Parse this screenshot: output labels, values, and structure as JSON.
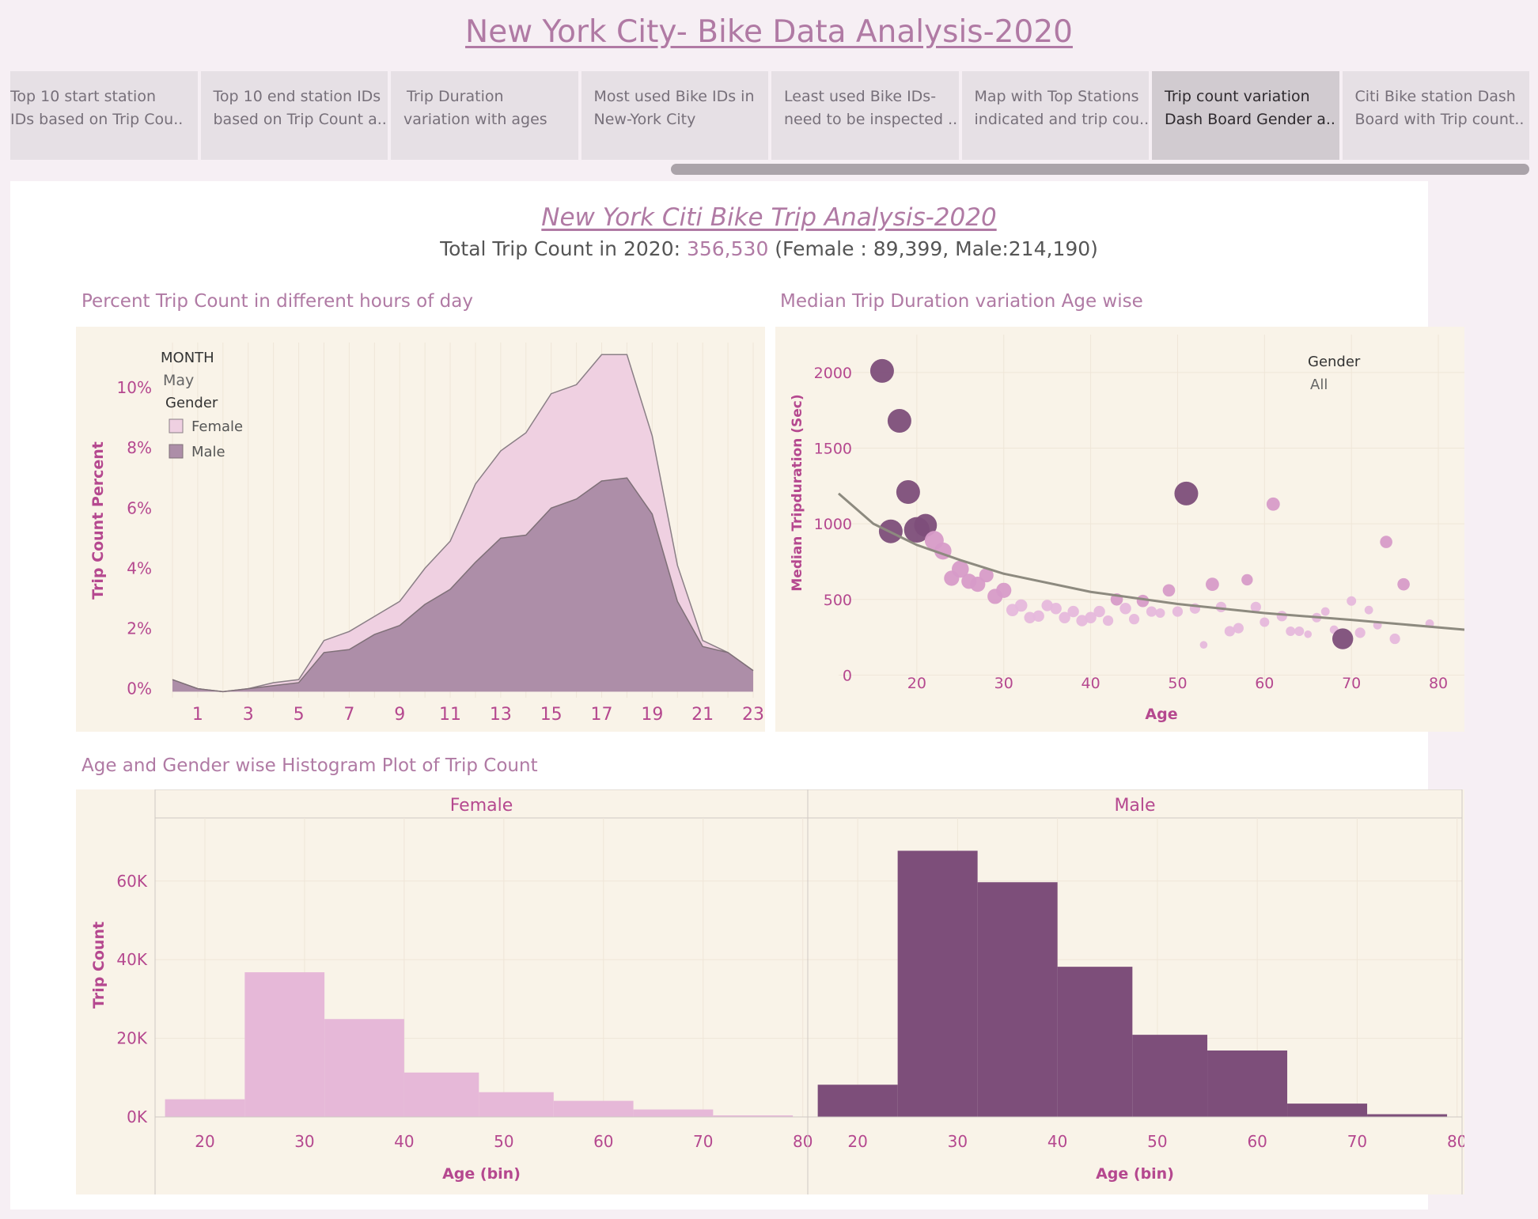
{
  "header": {
    "title": "New York City- Bike Data Analysis-2020"
  },
  "tabs": [
    {
      "line1": "Top 10 start station",
      "line2": "IDs based on Trip Cou.."
    },
    {
      "line1": "Top 10 end station IDs",
      "line2": "based on Trip Count a.."
    },
    {
      "line1": "Trip Duration",
      "line2": "variation with  ages"
    },
    {
      "line1": "Most used Bike IDs in",
      "line2": "New-York City"
    },
    {
      "line1": "Least used Bike IDs-",
      "line2": "need to be inspected .."
    },
    {
      "line1": "Map with Top Stations",
      "line2": "indicated and trip cou.."
    },
    {
      "line1": "Trip count variation",
      "line2": "Dash Board Gender a.."
    },
    {
      "line1": "Citi Bike station Dash",
      "line2": "Board with Trip count.."
    }
  ],
  "dashboard": {
    "title": "New York Citi Bike Trip Analysis-2020",
    "summary_prefix": "Total Trip Count in 2020: ",
    "total": "356,530",
    "summary_suffix": "  (Female :  89,399,   Male:214,190)"
  },
  "colors": {
    "accent": "#b07aa4",
    "female": "#e6b8d8",
    "male": "#7d4e7a",
    "chart_bg": "#f9f3e8"
  },
  "chart_data": [
    {
      "type": "area",
      "title": "Percent Trip Count in different hours of day",
      "ylabel": "Trip Count Percent",
      "xlabel": "",
      "filter_label": "MONTH",
      "filter_value": "May",
      "legend_title": "Gender",
      "legend_position": "top-left",
      "x": [
        0,
        1,
        2,
        3,
        4,
        5,
        6,
        7,
        8,
        9,
        10,
        11,
        12,
        13,
        14,
        15,
        16,
        17,
        18,
        19,
        20,
        21,
        22,
        23
      ],
      "x_ticks": [
        "1",
        "3",
        "5",
        "7",
        "9",
        "11",
        "13",
        "15",
        "17",
        "19",
        "21",
        "23"
      ],
      "y_ticks": [
        "0%",
        "2%",
        "4%",
        "6%",
        "8%",
        "10%"
      ],
      "ylim": [
        0,
        11.5
      ],
      "series": [
        {
          "name": "Male",
          "values": [
            0.3,
            0.0,
            -0.1,
            0.0,
            0.1,
            0.2,
            1.2,
            1.3,
            1.8,
            2.1,
            2.8,
            3.3,
            4.2,
            5.0,
            5.1,
            6.0,
            6.3,
            6.9,
            7.0,
            5.8,
            2.9,
            1.4,
            1.2,
            0.6
          ]
        },
        {
          "name": "Female",
          "values": [
            0.3,
            0.0,
            -0.1,
            0.0,
            0.2,
            0.3,
            1.6,
            1.9,
            2.4,
            2.9,
            4.0,
            4.9,
            6.8,
            7.9,
            8.5,
            9.8,
            10.1,
            11.1,
            11.1,
            8.4,
            4.1,
            1.6,
            1.2,
            0.6
          ]
        }
      ]
    },
    {
      "type": "scatter",
      "title": "Median Trip Duration variation Age wise",
      "xlabel": "Age",
      "ylabel": "Median Tripduration (Sec)",
      "legend_title": "Gender",
      "legend_value": "All",
      "legend_position": "top-right",
      "x_ticks": [
        20,
        30,
        40,
        50,
        60,
        70,
        80
      ],
      "y_ticks": [
        0,
        500,
        1000,
        1500,
        2000
      ],
      "xlim": [
        11,
        83
      ],
      "ylim": [
        -50,
        2250
      ],
      "points": [
        {
          "x": 16,
          "y": 2010,
          "s": 2.5,
          "c": "dark"
        },
        {
          "x": 18,
          "y": 1680,
          "s": 2.5,
          "c": "dark"
        },
        {
          "x": 19,
          "y": 1210,
          "s": 2.5,
          "c": "dark"
        },
        {
          "x": 17,
          "y": 950,
          "s": 2.5,
          "c": "dark"
        },
        {
          "x": 20,
          "y": 960,
          "s": 2.7,
          "c": "dark"
        },
        {
          "x": 21,
          "y": 990,
          "s": 2.4,
          "c": "dark"
        },
        {
          "x": 22,
          "y": 890,
          "s": 2.0,
          "c": "med"
        },
        {
          "x": 23,
          "y": 820,
          "s": 1.8,
          "c": "med"
        },
        {
          "x": 24,
          "y": 640,
          "s": 1.6,
          "c": "med"
        },
        {
          "x": 25,
          "y": 700,
          "s": 1.8,
          "c": "med"
        },
        {
          "x": 26,
          "y": 620,
          "s": 1.6,
          "c": "med"
        },
        {
          "x": 27,
          "y": 600,
          "s": 1.6,
          "c": "med"
        },
        {
          "x": 28,
          "y": 660,
          "s": 1.5,
          "c": "med"
        },
        {
          "x": 29,
          "y": 520,
          "s": 1.6,
          "c": "med"
        },
        {
          "x": 30,
          "y": 560,
          "s": 1.6,
          "c": "med"
        },
        {
          "x": 31,
          "y": 430,
          "s": 1.3,
          "c": "light"
        },
        {
          "x": 32,
          "y": 460,
          "s": 1.3,
          "c": "light"
        },
        {
          "x": 33,
          "y": 380,
          "s": 1.2,
          "c": "light"
        },
        {
          "x": 34,
          "y": 390,
          "s": 1.2,
          "c": "light"
        },
        {
          "x": 35,
          "y": 460,
          "s": 1.2,
          "c": "light"
        },
        {
          "x": 36,
          "y": 440,
          "s": 1.2,
          "c": "light"
        },
        {
          "x": 37,
          "y": 380,
          "s": 1.2,
          "c": "light"
        },
        {
          "x": 38,
          "y": 420,
          "s": 1.2,
          "c": "light"
        },
        {
          "x": 39,
          "y": 360,
          "s": 1.2,
          "c": "light"
        },
        {
          "x": 40,
          "y": 380,
          "s": 1.2,
          "c": "light"
        },
        {
          "x": 41,
          "y": 420,
          "s": 1.2,
          "c": "light"
        },
        {
          "x": 42,
          "y": 360,
          "s": 1.1,
          "c": "light"
        },
        {
          "x": 43,
          "y": 500,
          "s": 1.3,
          "c": "med"
        },
        {
          "x": 44,
          "y": 440,
          "s": 1.2,
          "c": "light"
        },
        {
          "x": 45,
          "y": 370,
          "s": 1.1,
          "c": "light"
        },
        {
          "x": 46,
          "y": 490,
          "s": 1.3,
          "c": "med"
        },
        {
          "x": 47,
          "y": 420,
          "s": 1.1,
          "c": "light"
        },
        {
          "x": 48,
          "y": 410,
          "s": 1.0,
          "c": "light"
        },
        {
          "x": 49,
          "y": 560,
          "s": 1.3,
          "c": "med"
        },
        {
          "x": 50,
          "y": 420,
          "s": 1.1,
          "c": "light"
        },
        {
          "x": 51,
          "y": 1200,
          "s": 2.5,
          "c": "dark"
        },
        {
          "x": 52,
          "y": 440,
          "s": 1.1,
          "c": "light"
        },
        {
          "x": 53,
          "y": 200,
          "s": 0.8,
          "c": "light"
        },
        {
          "x": 54,
          "y": 600,
          "s": 1.4,
          "c": "med"
        },
        {
          "x": 55,
          "y": 450,
          "s": 1.1,
          "c": "light"
        },
        {
          "x": 56,
          "y": 290,
          "s": 1.1,
          "c": "light"
        },
        {
          "x": 57,
          "y": 310,
          "s": 1.1,
          "c": "light"
        },
        {
          "x": 58,
          "y": 630,
          "s": 1.2,
          "c": "med"
        },
        {
          "x": 59,
          "y": 450,
          "s": 1.1,
          "c": "light"
        },
        {
          "x": 60,
          "y": 350,
          "s": 1.0,
          "c": "light"
        },
        {
          "x": 61,
          "y": 1130,
          "s": 1.4,
          "c": "med"
        },
        {
          "x": 62,
          "y": 390,
          "s": 1.1,
          "c": "light"
        },
        {
          "x": 63,
          "y": 290,
          "s": 1.0,
          "c": "light"
        },
        {
          "x": 64,
          "y": 290,
          "s": 1.0,
          "c": "light"
        },
        {
          "x": 65,
          "y": 270,
          "s": 0.8,
          "c": "light"
        },
        {
          "x": 66,
          "y": 380,
          "s": 1.0,
          "c": "light"
        },
        {
          "x": 67,
          "y": 420,
          "s": 0.9,
          "c": "light"
        },
        {
          "x": 68,
          "y": 300,
          "s": 0.9,
          "c": "light"
        },
        {
          "x": 69,
          "y": 240,
          "s": 2.2,
          "c": "dark"
        },
        {
          "x": 70,
          "y": 490,
          "s": 1.0,
          "c": "light"
        },
        {
          "x": 71,
          "y": 280,
          "s": 1.1,
          "c": "light"
        },
        {
          "x": 72,
          "y": 430,
          "s": 0.9,
          "c": "light"
        },
        {
          "x": 73,
          "y": 330,
          "s": 0.9,
          "c": "light"
        },
        {
          "x": 74,
          "y": 880,
          "s": 1.3,
          "c": "med"
        },
        {
          "x": 75,
          "y": 240,
          "s": 1.1,
          "c": "light"
        },
        {
          "x": 76,
          "y": 600,
          "s": 1.3,
          "c": "med"
        },
        {
          "x": 79,
          "y": 340,
          "s": 0.9,
          "c": "light"
        }
      ],
      "trend_line": [
        [
          11,
          1200
        ],
        [
          15,
          1000
        ],
        [
          20,
          860
        ],
        [
          25,
          760
        ],
        [
          30,
          670
        ],
        [
          40,
          550
        ],
        [
          50,
          470
        ],
        [
          60,
          410
        ],
        [
          70,
          365
        ],
        [
          83,
          300
        ]
      ]
    },
    {
      "type": "bar",
      "title": "Age and Gender wise Histogram Plot of Trip Count",
      "ylabel": "Trip Count",
      "xlabel": "Age (bin)",
      "y_ticks": [
        "0K",
        "20K",
        "40K",
        "60K"
      ],
      "ylim": [
        0,
        70000
      ],
      "x_ticks": [
        "20",
        "30",
        "40",
        "50",
        "60",
        "70",
        "80"
      ],
      "panels": [
        {
          "name": "Female",
          "bin_start": [
            16,
            24,
            32,
            40,
            47.5,
            55,
            63,
            71
          ],
          "values": [
            4500,
            36800,
            24900,
            11300,
            6300,
            4100,
            1900,
            400
          ]
        },
        {
          "name": "Male",
          "bin_start": [
            16,
            24,
            32,
            40,
            47.5,
            55,
            63,
            71
          ],
          "values": [
            8200,
            67700,
            59700,
            38200,
            20900,
            16900,
            3400,
            700
          ]
        }
      ]
    }
  ]
}
